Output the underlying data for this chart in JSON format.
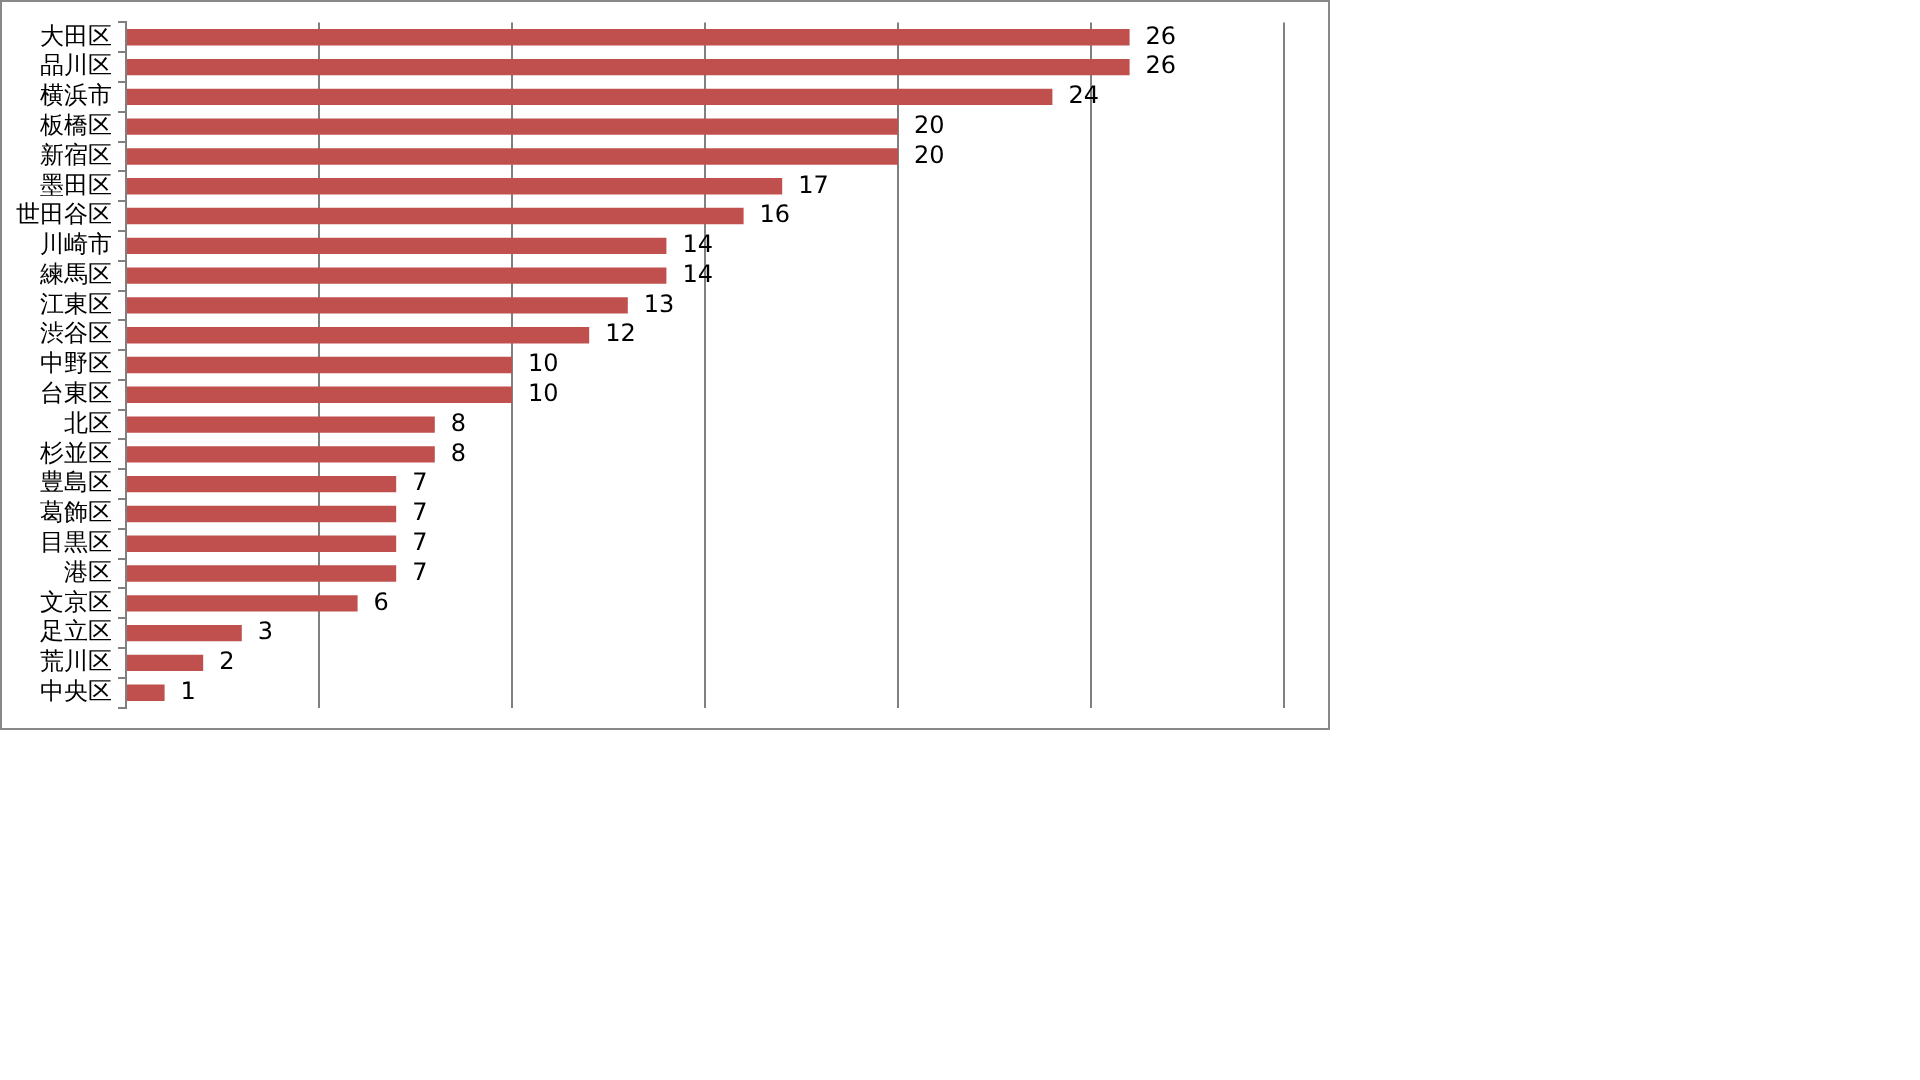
{
  "chart_data": {
    "type": "bar",
    "orientation": "horizontal",
    "categories": [
      "大田区",
      "品川区",
      "横浜市",
      "板橋区",
      "新宿区",
      "墨田区",
      "世田谷区",
      "川崎市",
      "練馬区",
      "江東区",
      "渋谷区",
      "中野区",
      "台東区",
      "北区",
      "杉並区",
      "豊島区",
      "葛飾区",
      "目黒区",
      "港区",
      "文京区",
      "足立区",
      "荒川区",
      "中央区"
    ],
    "values": [
      26,
      26,
      24,
      20,
      20,
      17,
      16,
      14,
      14,
      13,
      12,
      10,
      10,
      8,
      8,
      7,
      7,
      7,
      7,
      6,
      3,
      2,
      1
    ],
    "color": "#c0504d",
    "xlim": [
      0,
      30
    ],
    "xticks": [
      {
        "value": 0,
        "label": null
      },
      {
        "value": 5,
        "label": null
      },
      {
        "value": 10,
        "label": null
      },
      {
        "value": 15,
        "label": null
      },
      {
        "value": 20,
        "label": null
      },
      {
        "value": 25,
        "label": null
      },
      {
        "value": 30,
        "label": null
      }
    ],
    "tick_labels": "y",
    "grid": "x",
    "legend": false,
    "data_labels": true
  }
}
